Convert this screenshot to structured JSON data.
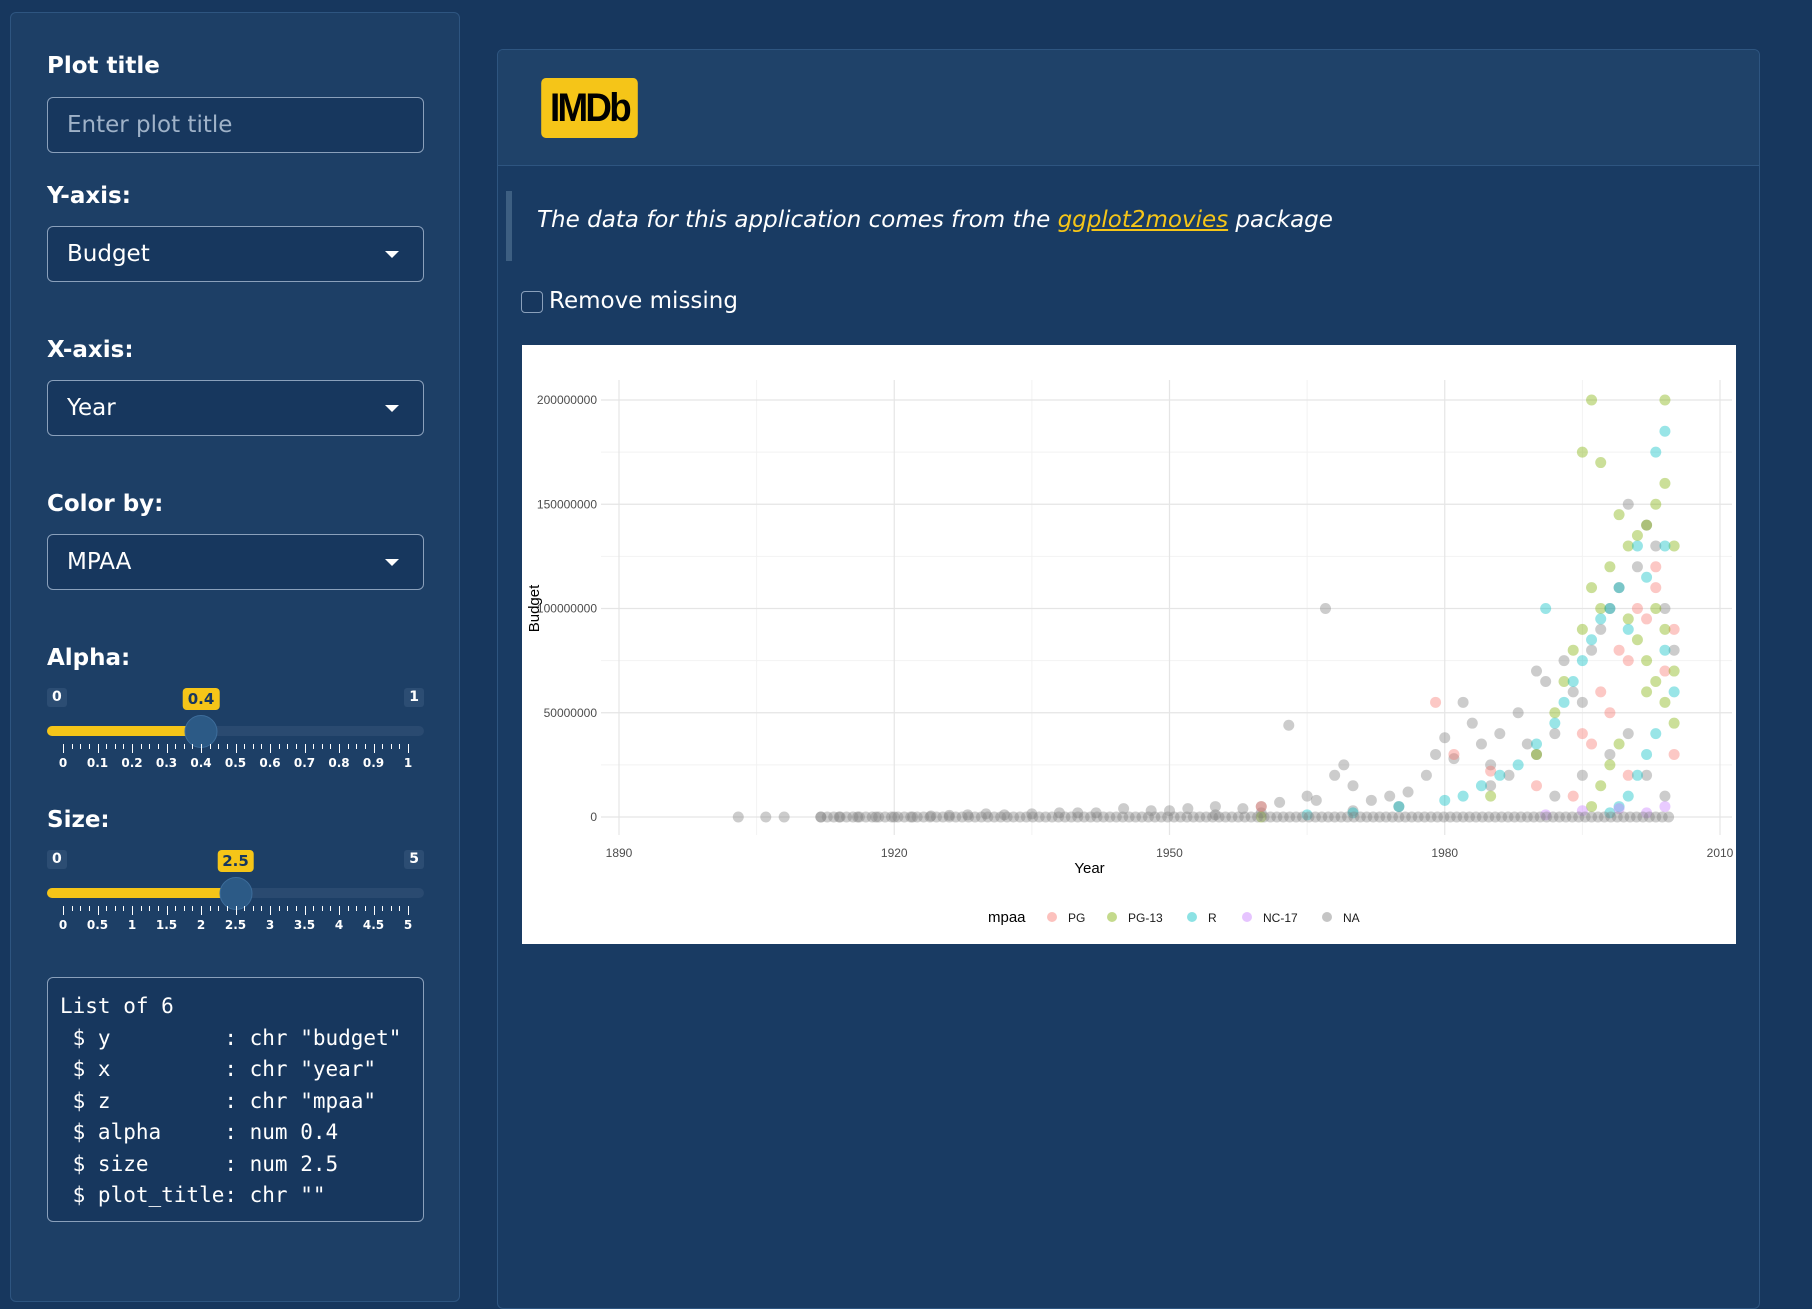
{
  "sidebar": {
    "plot_title_label": "Plot title",
    "plot_title_placeholder": "Enter plot title",
    "plot_title_value": "",
    "y_axis_label": "Y-axis:",
    "y_axis_selected": "Budget",
    "x_axis_label": "X-axis:",
    "x_axis_selected": "Year",
    "color_by_label": "Color by:",
    "color_by_selected": "MPAA",
    "alpha": {
      "label": "Alpha:",
      "min": 0,
      "max": 1,
      "value": 0.4,
      "min_label": "0",
      "max_label": "1",
      "value_label": "0.4",
      "ticks": [
        "0",
        "0.1",
        "0.2",
        "0.3",
        "0.4",
        "0.5",
        "0.6",
        "0.7",
        "0.8",
        "0.9",
        "1"
      ]
    },
    "size": {
      "label": "Size:",
      "min": 0,
      "max": 5,
      "value": 2.5,
      "min_label": "0",
      "max_label": "5",
      "value_label": "2.5",
      "ticks": [
        "0",
        "0.5",
        "1",
        "1.5",
        "2",
        "2.5",
        "3",
        "3.5",
        "4",
        "4.5",
        "5"
      ]
    },
    "debug_output": "List of 6\n $ y         : chr \"budget\"\n $ x         : chr \"year\"\n $ z         : chr \"mpaa\"\n $ alpha     : num 0.4\n $ size      : num 2.5\n $ plot_title: chr \"\""
  },
  "header": {
    "logo_text": "IMDb"
  },
  "main": {
    "description_prefix": "The data for this application comes from the ",
    "description_link": "ggplot2movies",
    "description_suffix": " package",
    "remove_missing_label": "Remove missing",
    "remove_missing_checked": false
  },
  "colors": {
    "accent": "#f5c518",
    "background": "#17375e",
    "PG": "#f8766d",
    "PG-13": "#7cae00",
    "R": "#00bfc4",
    "NC-17": "#c77cff",
    "NA": "#7f7f7f"
  },
  "chart_data": {
    "type": "scatter",
    "title": "",
    "xlabel": "Year",
    "ylabel": "Budget",
    "xlim": [
      1890,
      2010
    ],
    "ylim": [
      0,
      200000000
    ],
    "x_ticks": [
      1890,
      1920,
      1950,
      1980,
      2010
    ],
    "x_tick_labels": [
      "1890",
      "1920",
      "1950",
      "1980",
      "2010"
    ],
    "y_ticks": [
      0,
      50000000,
      100000000,
      150000000,
      200000000
    ],
    "y_tick_labels": [
      "0",
      "50000000",
      "100000000",
      "150000000",
      "200000000"
    ],
    "grid": true,
    "legend_title": "mpaa",
    "legend_position": "bottom",
    "legend": [
      "PG",
      "PG-13",
      "R",
      "NC-17",
      "NA"
    ],
    "alpha": 0.4,
    "point_size": 2.5,
    "series": [
      {
        "name": "NA",
        "points": [
          [
            1903,
            0
          ],
          [
            1906,
            0
          ],
          [
            1908,
            0
          ],
          [
            1912,
            0
          ],
          [
            1914,
            0
          ],
          [
            1916,
            0
          ],
          [
            1918,
            0
          ],
          [
            1920,
            0
          ],
          [
            1922,
            0
          ],
          [
            1924,
            500000
          ],
          [
            1926,
            800000
          ],
          [
            1928,
            1000000
          ],
          [
            1930,
            1500000
          ],
          [
            1932,
            1000000
          ],
          [
            1935,
            1500000
          ],
          [
            1938,
            2000000
          ],
          [
            1940,
            2000000
          ],
          [
            1942,
            2000000
          ],
          [
            1945,
            4000000
          ],
          [
            1948,
            3000000
          ],
          [
            1950,
            3000000
          ],
          [
            1952,
            4000000
          ],
          [
            1955,
            5000000
          ],
          [
            1958,
            4000000
          ],
          [
            1960,
            5000000
          ],
          [
            1962,
            7000000
          ],
          [
            1963,
            44000000
          ],
          [
            1965,
            10000000
          ],
          [
            1966,
            8000000
          ],
          [
            1967,
            100000000
          ],
          [
            1968,
            20000000
          ],
          [
            1969,
            25000000
          ],
          [
            1970,
            15000000
          ],
          [
            1972,
            8000000
          ],
          [
            1974,
            10000000
          ],
          [
            1976,
            12000000
          ],
          [
            1978,
            20000000
          ],
          [
            1979,
            30000000
          ],
          [
            1980,
            38000000
          ],
          [
            1981,
            28000000
          ],
          [
            1982,
            55000000
          ],
          [
            1983,
            45000000
          ],
          [
            1984,
            35000000
          ],
          [
            1985,
            25000000
          ],
          [
            1986,
            40000000
          ],
          [
            1987,
            20000000
          ],
          [
            1988,
            50000000
          ],
          [
            1989,
            35000000
          ],
          [
            1990,
            70000000
          ],
          [
            1991,
            65000000
          ],
          [
            1992,
            40000000
          ],
          [
            1993,
            75000000
          ],
          [
            1994,
            60000000
          ],
          [
            1995,
            55000000
          ],
          [
            1996,
            80000000
          ],
          [
            1997,
            90000000
          ],
          [
            1998,
            100000000
          ],
          [
            1999,
            110000000
          ],
          [
            2000,
            150000000
          ],
          [
            2001,
            120000000
          ],
          [
            2002,
            140000000
          ],
          [
            2003,
            130000000
          ],
          [
            2004,
            100000000
          ],
          [
            2005,
            80000000
          ],
          [
            1992,
            10000000
          ],
          [
            1995,
            20000000
          ],
          [
            1998,
            30000000
          ],
          [
            2000,
            40000000
          ],
          [
            2002,
            20000000
          ],
          [
            2004,
            10000000
          ],
          [
            1975,
            5000000
          ],
          [
            1985,
            15000000
          ],
          [
            1990,
            30000000
          ],
          [
            1970,
            3000000
          ],
          [
            1960,
            2000000
          ],
          [
            1955,
            1000000
          ]
        ]
      },
      {
        "name": "PG",
        "points": [
          [
            1979,
            55000000
          ],
          [
            1981,
            30000000
          ],
          [
            1985,
            22000000
          ],
          [
            1990,
            15000000
          ],
          [
            1995,
            40000000
          ],
          [
            1997,
            60000000
          ],
          [
            1999,
            80000000
          ],
          [
            2000,
            75000000
          ],
          [
            2001,
            100000000
          ],
          [
            2002,
            95000000
          ],
          [
            2003,
            110000000
          ],
          [
            2004,
            70000000
          ],
          [
            2005,
            90000000
          ],
          [
            2003,
            120000000
          ],
          [
            1998,
            50000000
          ],
          [
            1996,
            35000000
          ],
          [
            2000,
            20000000
          ],
          [
            1994,
            10000000
          ],
          [
            1960,
            5000000
          ],
          [
            2005,
            30000000
          ]
        ]
      },
      {
        "name": "PG-13",
        "points": [
          [
            1996,
            200000000
          ],
          [
            2004,
            200000000
          ],
          [
            1995,
            175000000
          ],
          [
            1997,
            170000000
          ],
          [
            2004,
            160000000
          ],
          [
            2003,
            150000000
          ],
          [
            2002,
            140000000
          ],
          [
            2001,
            135000000
          ],
          [
            1999,
            145000000
          ],
          [
            2000,
            130000000
          ],
          [
            2005,
            130000000
          ],
          [
            1998,
            120000000
          ],
          [
            1996,
            110000000
          ],
          [
            1997,
            100000000
          ],
          [
            1995,
            90000000
          ],
          [
            1994,
            80000000
          ],
          [
            1993,
            65000000
          ],
          [
            1992,
            50000000
          ],
          [
            2000,
            95000000
          ],
          [
            2001,
            85000000
          ],
          [
            2002,
            75000000
          ],
          [
            2003,
            65000000
          ],
          [
            2004,
            55000000
          ],
          [
            2005,
            45000000
          ],
          [
            1999,
            35000000
          ],
          [
            1998,
            25000000
          ],
          [
            1997,
            15000000
          ],
          [
            1996,
            5000000
          ],
          [
            1990,
            30000000
          ],
          [
            1985,
            10000000
          ],
          [
            1960,
            0
          ],
          [
            2002,
            60000000
          ],
          [
            2004,
            90000000
          ],
          [
            2005,
            70000000
          ],
          [
            2003,
            100000000
          ]
        ]
      },
      {
        "name": "R",
        "points": [
          [
            2004,
            185000000
          ],
          [
            2003,
            175000000
          ],
          [
            2004,
            130000000
          ],
          [
            2001,
            130000000
          ],
          [
            2002,
            115000000
          ],
          [
            1999,
            110000000
          ],
          [
            1998,
            100000000
          ],
          [
            2000,
            90000000
          ],
          [
            1991,
            100000000
          ],
          [
            1997,
            95000000
          ],
          [
            1996,
            85000000
          ],
          [
            1995,
            75000000
          ],
          [
            1994,
            65000000
          ],
          [
            1993,
            55000000
          ],
          [
            1992,
            45000000
          ],
          [
            1990,
            35000000
          ],
          [
            1988,
            25000000
          ],
          [
            1986,
            20000000
          ],
          [
            1984,
            15000000
          ],
          [
            1982,
            10000000
          ],
          [
            1980,
            8000000
          ],
          [
            1975,
            5000000
          ],
          [
            2005,
            60000000
          ],
          [
            2004,
            80000000
          ],
          [
            2003,
            40000000
          ],
          [
            2002,
            30000000
          ],
          [
            2001,
            20000000
          ],
          [
            2000,
            10000000
          ],
          [
            1999,
            5000000
          ],
          [
            1998,
            2000000
          ],
          [
            1970,
            2000000
          ],
          [
            1965,
            1000000
          ]
        ]
      },
      {
        "name": "NC-17",
        "points": [
          [
            1991,
            1000000
          ],
          [
            1995,
            3000000
          ],
          [
            1999,
            4000000
          ],
          [
            2002,
            2000000
          ],
          [
            2004,
            5000000
          ]
        ]
      }
    ]
  }
}
